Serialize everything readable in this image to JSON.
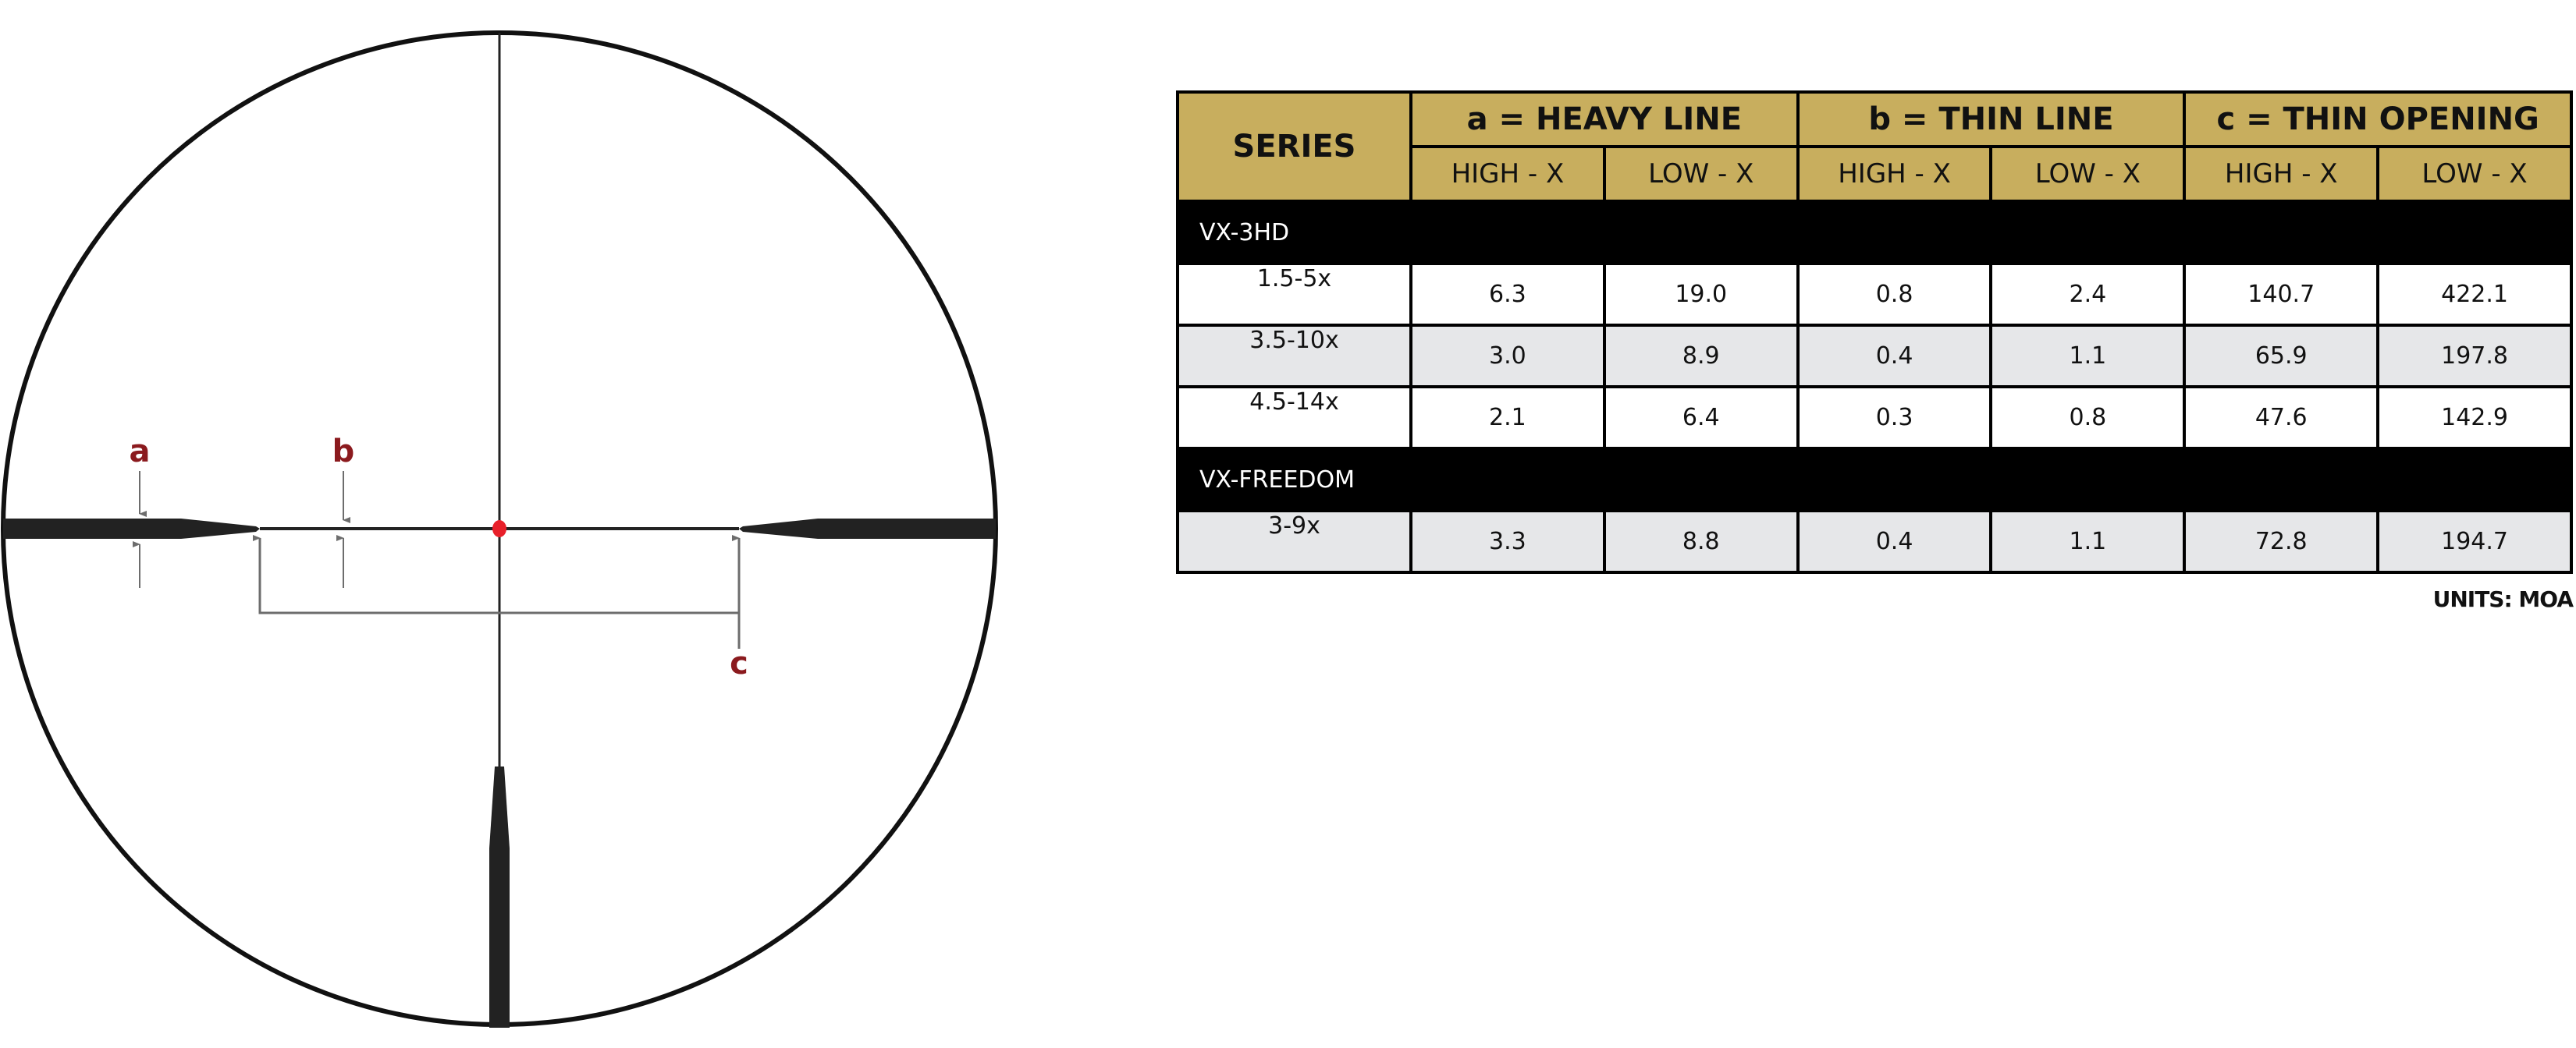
{
  "reticle": {
    "labels": {
      "a": "a",
      "b": "b",
      "c": "c"
    },
    "colors": {
      "label": "#8b1a1e",
      "center_dot": "#e8202a",
      "reticle": "#222222",
      "dimension": "#6d6d6d"
    }
  },
  "table": {
    "series_header": "SERIES",
    "groups": [
      "a = HEAVY LINE",
      "b = THIN LINE",
      "c = THIN OPENING"
    ],
    "subheaders": [
      "HIGH - X",
      "LOW - X",
      "HIGH - X",
      "LOW - X",
      "HIGH - X",
      "LOW - X"
    ],
    "sections": [
      {
        "name": "VX-3HD",
        "rows": [
          {
            "label": "1.5-5x",
            "values": [
              "6.3",
              "19.0",
              "0.8",
              "2.4",
              "140.7",
              "422.1"
            ]
          },
          {
            "label": "3.5-10x",
            "values": [
              "3.0",
              "8.9",
              "0.4",
              "1.1",
              "65.9",
              "197.8"
            ]
          },
          {
            "label": "4.5-14x",
            "values": [
              "2.1",
              "6.4",
              "0.3",
              "0.8",
              "47.6",
              "142.9"
            ]
          }
        ]
      },
      {
        "name": "VX-FREEDOM",
        "rows": [
          {
            "label": "3-9x",
            "values": [
              "3.3",
              "8.8",
              "0.4",
              "1.1",
              "72.8",
              "194.7"
            ]
          }
        ]
      }
    ],
    "header_color": "#c8ae5e",
    "alt_row_color": "#e6e7e9"
  },
  "units": "UNITS: MOA"
}
